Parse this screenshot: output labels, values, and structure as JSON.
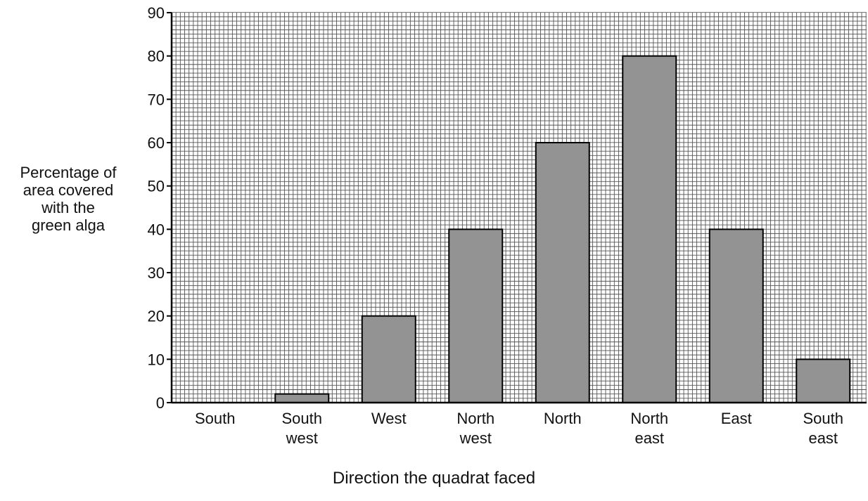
{
  "chart_data": {
    "type": "bar",
    "categories": [
      [
        "South"
      ],
      [
        "South",
        "west"
      ],
      [
        "West"
      ],
      [
        "North",
        "west"
      ],
      [
        "North"
      ],
      [
        "North",
        "east"
      ],
      [
        "East"
      ],
      [
        "South",
        "east"
      ]
    ],
    "values": [
      0,
      2,
      20,
      40,
      60,
      80,
      40,
      10
    ],
    "xlabel": "Direction the quadrat faced",
    "ylabel_lines": [
      "Percentage of",
      "area covered",
      "with the",
      "green alga"
    ],
    "ylim": [
      0,
      90
    ],
    "yticks": [
      0,
      10,
      20,
      30,
      40,
      50,
      60,
      70,
      80,
      90
    ],
    "grid": true,
    "colors": {
      "bar": "#939393",
      "grid": "#555555",
      "axis": "#000000"
    }
  }
}
